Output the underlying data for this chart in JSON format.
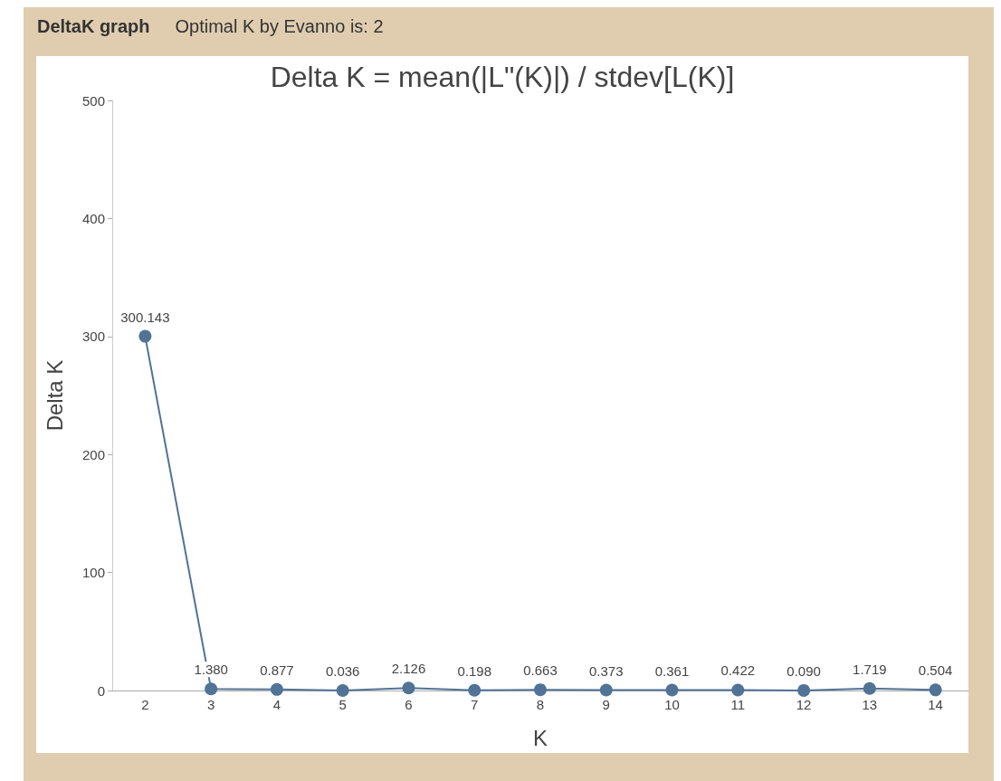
{
  "chart_data": {
    "type": "line",
    "title": "Delta K = mean(|L\"(K)|) / stdev[L(K)]",
    "annotations": [
      "DeltaK graph",
      "Optimal K by Evanno is: 2"
    ],
    "xlabel": "K",
    "ylabel": "Delta K",
    "categories": [
      "2",
      "3",
      "4",
      "5",
      "6",
      "7",
      "8",
      "9",
      "10",
      "11",
      "12",
      "13",
      "14"
    ],
    "series": [
      {
        "color": "#517396",
        "values": [
          300.143,
          1.38,
          0.877,
          0.036,
          2.126,
          0.198,
          0.663,
          0.373,
          0.361,
          0.422,
          0.09,
          1.719,
          0.504
        ],
        "value_labels": [
          "300.143",
          "1.380",
          "0.877",
          "0.036",
          "2.126",
          "0.198",
          "0.663",
          "0.373",
          "0.361",
          "0.422",
          "0.090",
          "1.719",
          "0.504"
        ]
      }
    ],
    "ylim": [
      0,
      500
    ],
    "yticks": [
      0,
      100,
      200,
      300,
      400,
      500
    ],
    "grid": false,
    "marker": "circle",
    "line_style": "solid"
  }
}
